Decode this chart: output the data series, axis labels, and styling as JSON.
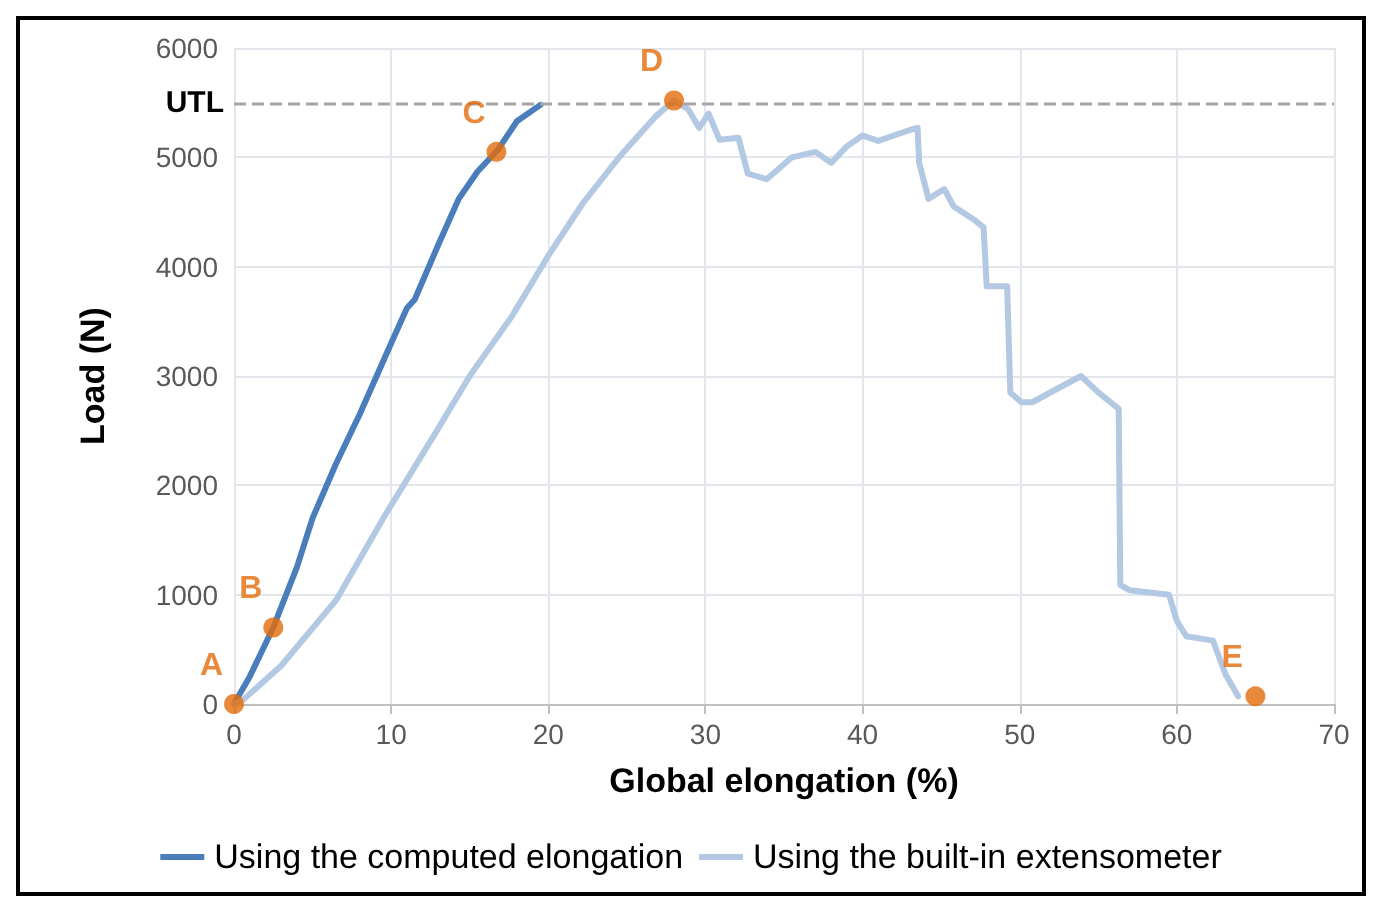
{
  "chart_data": {
    "type": "line",
    "xlabel": "Global elongation (%)",
    "ylabel": "Load (N)",
    "xlim": [
      0,
      70
    ],
    "xticks": [
      0,
      10,
      20,
      30,
      40,
      50,
      60,
      70
    ],
    "ylim": [
      0,
      6000
    ],
    "yticks": [
      0,
      1000,
      2000,
      3000,
      4000,
      5000,
      6000
    ],
    "grid": true,
    "legend": "bottom",
    "marker": "none",
    "line_style": "solid",
    "ref_lines": [
      {
        "axis": "y",
        "value": 5500,
        "label": "UTL",
        "color": "#a6a6a6",
        "line_style": "dashed"
      }
    ],
    "series": [
      {
        "name": "Using the computed elongation",
        "color": "#4a7ebb",
        "x": [
          0,
          1,
          2.5,
          4,
          5,
          6.5,
          8,
          10,
          11,
          11.5,
          13,
          14.3,
          15.5,
          16.8,
          18,
          19.5
        ],
        "values": [
          0,
          250,
          700,
          1250,
          1700,
          2200,
          2650,
          3300,
          3620,
          3700,
          4200,
          4620,
          4870,
          5070,
          5330,
          5480
        ]
      },
      {
        "name": "Using the built-in extensometer",
        "color": "#b3c8e2",
        "x": [
          0,
          0.6,
          3,
          6.5,
          9.5,
          12.7,
          15,
          17.7,
          20,
          22.2,
          24.5,
          26.8,
          28,
          28.9,
          29.6,
          30.2,
          30.9,
          32.1,
          32.7,
          33.9,
          35.5,
          37,
          38,
          39,
          40,
          41,
          43,
          43.5,
          43.6,
          44.2,
          45.2,
          45.8,
          47.1,
          47.7,
          47.9,
          49.2,
          49.4,
          50.1,
          50.8,
          53.9,
          55,
          56.3,
          56.4,
          57,
          59.5,
          60,
          60.6,
          62.3,
          63.1,
          63.9
        ],
        "values": [
          0,
          40,
          350,
          950,
          1700,
          2450,
          3000,
          3550,
          4100,
          4580,
          5000,
          5370,
          5520,
          5440,
          5270,
          5400,
          5160,
          5180,
          4850,
          4800,
          5000,
          5050,
          4950,
          5100,
          5200,
          5150,
          5250,
          5270,
          4950,
          4620,
          4710,
          4550,
          4430,
          4360,
          3820,
          3820,
          2850,
          2760,
          2760,
          3000,
          2850,
          2700,
          1090,
          1040,
          1000,
          760,
          620,
          580,
          270,
          70
        ]
      },
      {
        "type": "scatter",
        "color": "#e36c0a",
        "marker": "circle",
        "x": [
          0,
          2.5,
          16.7,
          28,
          65
        ],
        "values": [
          0,
          700,
          5050,
          5520,
          70
        ],
        "value_labels": [
          "A",
          "B",
          "C",
          "D",
          "E"
        ]
      }
    ]
  }
}
